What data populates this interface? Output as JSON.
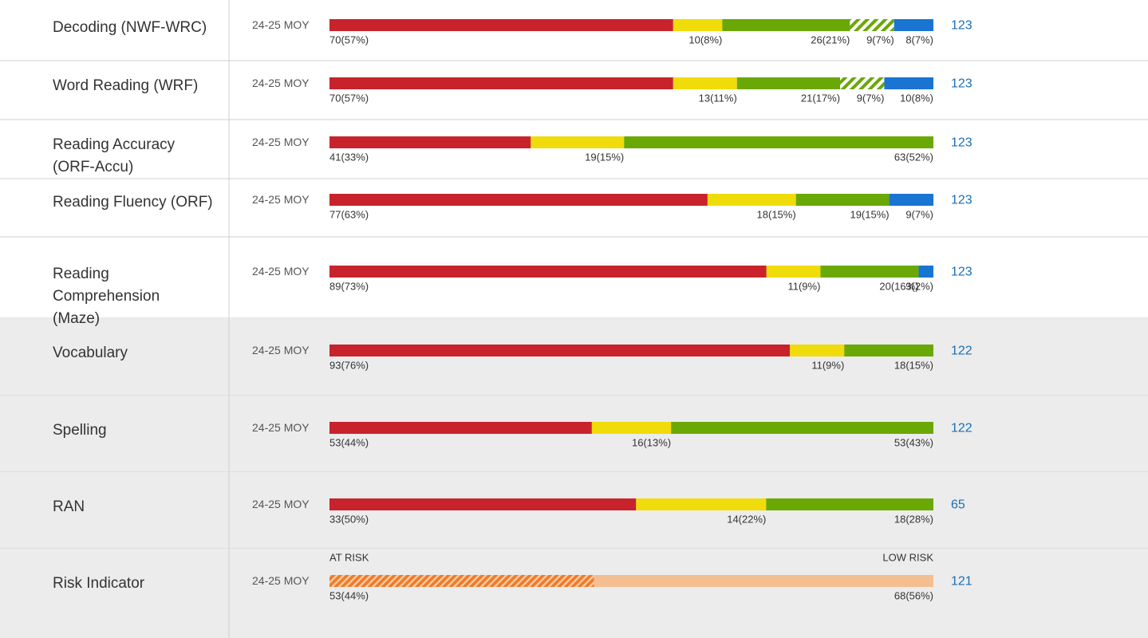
{
  "rows": [
    {
      "label": [
        "Decoding (NWF-WRC)"
      ],
      "period": "24-25 MOY",
      "total": 123,
      "segments": [
        {
          "value": 70,
          "label": "70(57%)",
          "color": "#c8232c"
        },
        {
          "value": 10,
          "label": "10(8%)",
          "color": "#f0dc0a"
        },
        {
          "value": 26,
          "label": "26(21%)",
          "color": "#6aa805"
        },
        {
          "value": 9,
          "label": "9(7%)",
          "color": "#6aa805",
          "pattern": "hatch"
        },
        {
          "value": 8,
          "label": "8(7%)",
          "color": "#1a74d2"
        }
      ]
    },
    {
      "label": [
        "Word Reading (WRF)"
      ],
      "period": "24-25 MOY",
      "total": 123,
      "segments": [
        {
          "value": 70,
          "label": "70(57%)",
          "color": "#c8232c"
        },
        {
          "value": 13,
          "label": "13(11%)",
          "color": "#f0dc0a"
        },
        {
          "value": 21,
          "label": "21(17%)",
          "color": "#6aa805"
        },
        {
          "value": 9,
          "label": "9(7%)",
          "color": "#6aa805",
          "pattern": "hatch"
        },
        {
          "value": 10,
          "label": "10(8%)",
          "color": "#1a74d2"
        }
      ]
    },
    {
      "label": [
        "Reading Accuracy",
        "(ORF-Accu)"
      ],
      "period": "24-25 MOY",
      "total": 123,
      "segments": [
        {
          "value": 41,
          "label": "41(33%)",
          "color": "#c8232c"
        },
        {
          "value": 19,
          "label": "19(15%)",
          "color": "#f0dc0a"
        },
        {
          "value": 63,
          "label": "63(52%)",
          "color": "#6aa805"
        }
      ]
    },
    {
      "label": [
        "Reading Fluency (ORF)"
      ],
      "period": "24-25 MOY",
      "total": 123,
      "segments": [
        {
          "value": 77,
          "label": "77(63%)",
          "color": "#c8232c"
        },
        {
          "value": 18,
          "label": "18(15%)",
          "color": "#f0dc0a"
        },
        {
          "value": 19,
          "label": "19(15%)",
          "color": "#6aa805"
        },
        {
          "value": 9,
          "label": "9(7%)",
          "color": "#1a74d2"
        }
      ]
    },
    {
      "label": [
        "Reading",
        "Comprehension",
        "(Maze)"
      ],
      "period": "24-25 MOY",
      "total": 123,
      "segments": [
        {
          "value": 89,
          "label": "89(73%)",
          "color": "#c8232c"
        },
        {
          "value": 11,
          "label": "11(9%)",
          "color": "#f0dc0a"
        },
        {
          "value": 20,
          "label": "20(16%)",
          "color": "#6aa805"
        },
        {
          "value": 3,
          "label": "3(2%)",
          "color": "#1a74d2"
        }
      ]
    },
    {
      "label": [
        "Vocabulary"
      ],
      "period": "24-25 MOY",
      "total": 122,
      "segments": [
        {
          "value": 93,
          "label": "93(76%)",
          "color": "#c8232c"
        },
        {
          "value": 11,
          "label": "11(9%)",
          "color": "#f0dc0a"
        },
        {
          "value": 18,
          "label": "18(15%)",
          "color": "#6aa805"
        }
      ]
    },
    {
      "label": [
        "Spelling"
      ],
      "period": "24-25 MOY",
      "total": 122,
      "segments": [
        {
          "value": 53,
          "label": "53(44%)",
          "color": "#c8232c"
        },
        {
          "value": 16,
          "label": "16(13%)",
          "color": "#f0dc0a"
        },
        {
          "value": 53,
          "label": "53(43%)",
          "color": "#6aa805"
        }
      ]
    },
    {
      "label": [
        "RAN"
      ],
      "period": "24-25 MOY",
      "total": 65,
      "segments": [
        {
          "value": 33,
          "label": "33(50%)",
          "color": "#c8232c"
        },
        {
          "value": 14,
          "label": "14(22%)",
          "color": "#f0dc0a"
        },
        {
          "value": 18,
          "label": "18(28%)",
          "color": "#6aa805"
        }
      ]
    },
    {
      "label": [
        "Risk Indicator"
      ],
      "period": "24-25 MOY",
      "total": 121,
      "scale_labels": [
        "AT RISK",
        "LOW RISK"
      ],
      "segments": [
        {
          "value": 53,
          "label": "53(44%)",
          "color": "#f07a28",
          "pattern": "hatch"
        },
        {
          "value": 68,
          "label": "68(56%)",
          "color": "#f5be90"
        }
      ]
    }
  ]
}
